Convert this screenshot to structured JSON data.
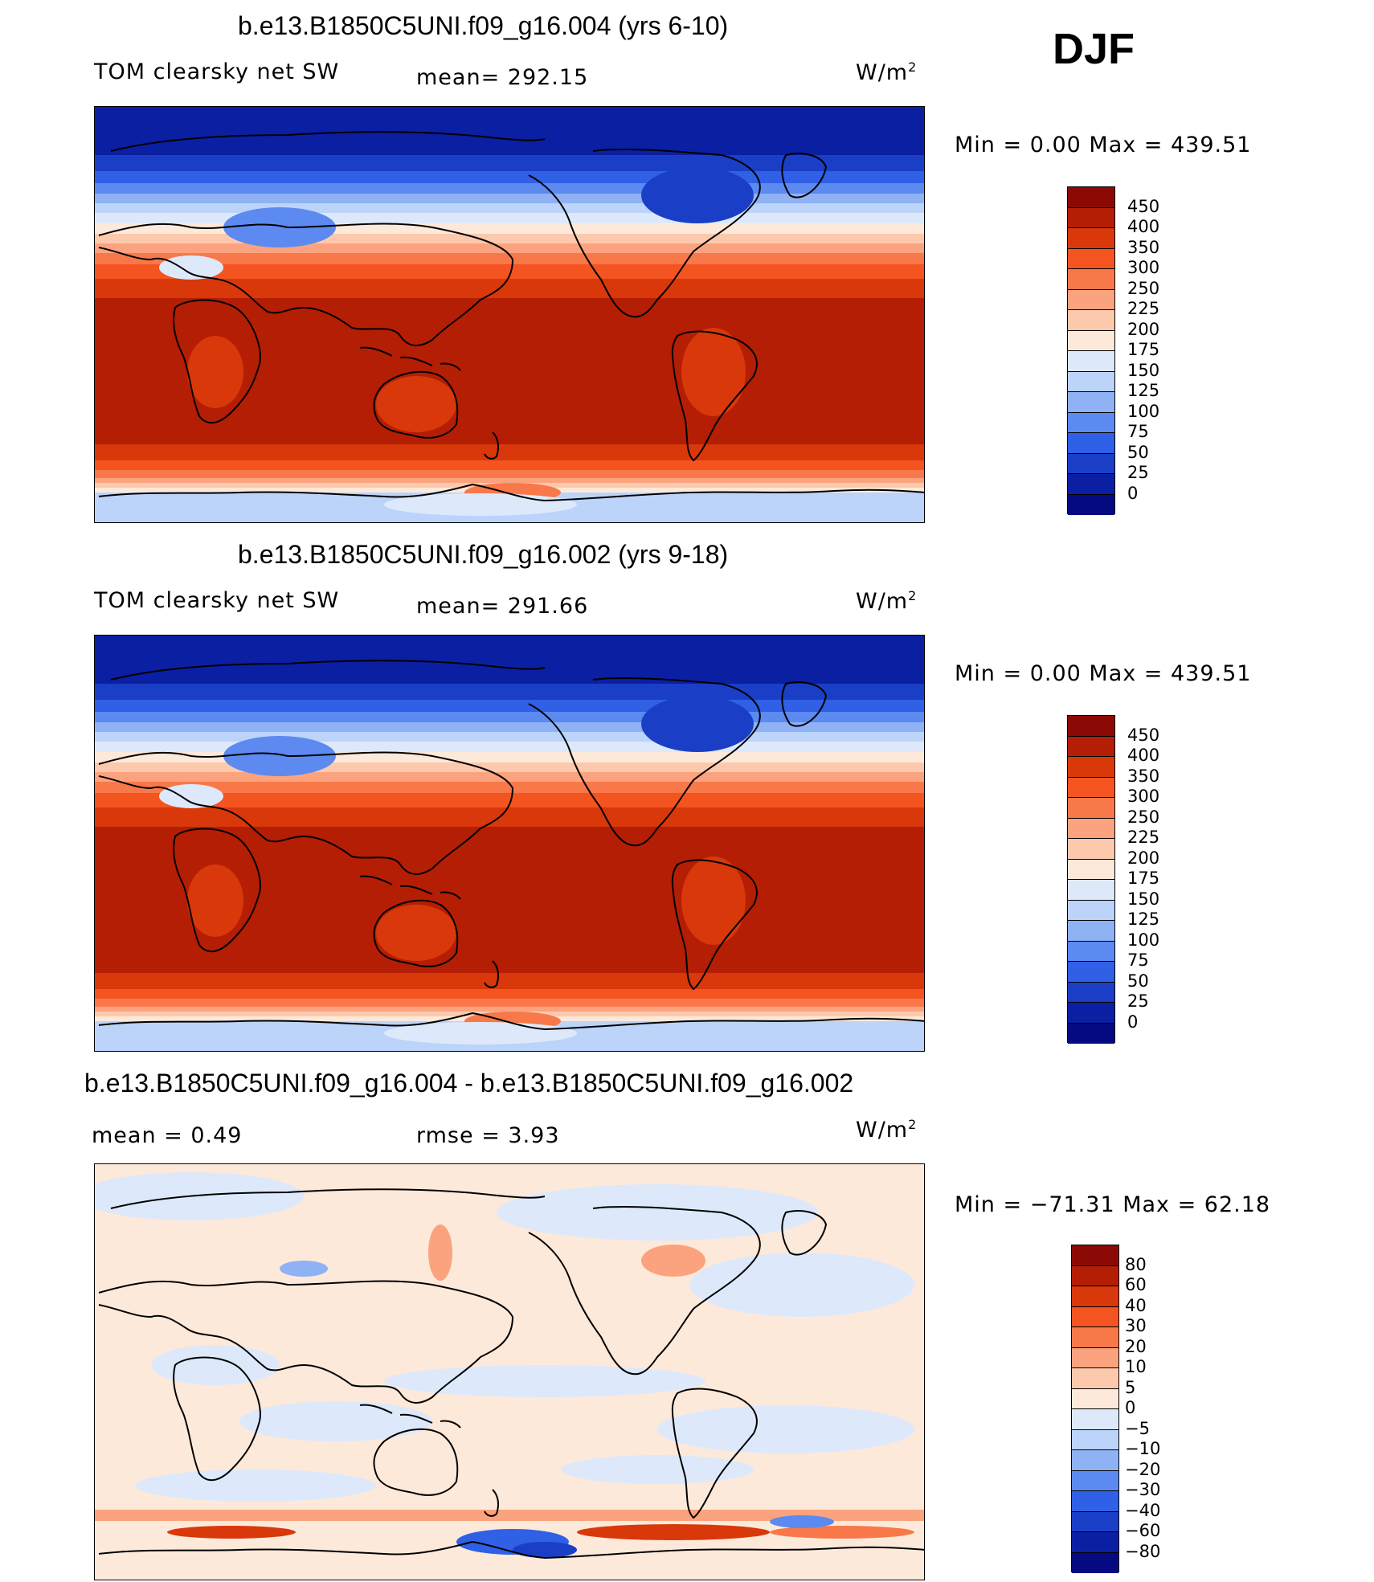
{
  "season": "DJF",
  "panels": [
    {
      "title": "b.e13.B1850C5UNI.f09_g16.004 (yrs 6-10)",
      "left_label": "TOM clearsky net SW",
      "mid_label": "mean= 292.15",
      "units_base": "W/m",
      "units_exp": "2",
      "minmax": "Min =    0.00 Max = 439.51",
      "colorbar_labels": [
        "450",
        "400",
        "350",
        "300",
        "250",
        "225",
        "200",
        "175",
        "150",
        "125",
        "100",
        "75",
        "50",
        "25",
        "0"
      ],
      "colorbar_colors": [
        "#8c0a06",
        "#b41e04",
        "#d8380a",
        "#f35420",
        "#f8784a",
        "#fba37e",
        "#fdc9ad",
        "#fde9da",
        "#dde9fb",
        "#bcd3fa",
        "#8fb2f5",
        "#5c8af0",
        "#2f60e5",
        "#1a3fc6",
        "#0b1fa3",
        "#050a80"
      ],
      "map_kind": "abs"
    },
    {
      "title": "b.e13.B1850C5UNI.f09_g16.002 (yrs 9-18)",
      "left_label": "TOM clearsky net SW",
      "mid_label": "mean= 291.66",
      "units_base": "W/m",
      "units_exp": "2",
      "minmax": "Min =    0.00 Max = 439.51",
      "colorbar_labels": [
        "450",
        "400",
        "350",
        "300",
        "250",
        "225",
        "200",
        "175",
        "150",
        "125",
        "100",
        "75",
        "50",
        "25",
        "0"
      ],
      "colorbar_colors": [
        "#8c0a06",
        "#b41e04",
        "#d8380a",
        "#f35420",
        "#f8784a",
        "#fba37e",
        "#fdc9ad",
        "#fde9da",
        "#dde9fb",
        "#bcd3fa",
        "#8fb2f5",
        "#5c8af0",
        "#2f60e5",
        "#1a3fc6",
        "#0b1fa3",
        "#050a80"
      ],
      "map_kind": "abs"
    },
    {
      "title": "b.e13.B1850C5UNI.f09_g16.004 - b.e13.B1850C5UNI.f09_g16.002",
      "left_label": "mean =    0.49",
      "mid_label": "rmse =    3.93",
      "units_base": "W/m",
      "units_exp": "2",
      "minmax": "Min = −71.31 Max =   62.18",
      "colorbar_labels": [
        "80",
        "60",
        "40",
        "30",
        "20",
        "10",
        "5",
        "0",
        "−5",
        "−10",
        "−20",
        "−30",
        "−40",
        "−60",
        "−80"
      ],
      "colorbar_colors": [
        "#8c0a06",
        "#b41e04",
        "#d8380a",
        "#f35420",
        "#f8784a",
        "#fba37e",
        "#fdc9ad",
        "#fde9da",
        "#dde9fb",
        "#bcd3fa",
        "#8fb2f5",
        "#5c8af0",
        "#2f60e5",
        "#1a3fc6",
        "#0b1fa3",
        "#050a80"
      ],
      "map_kind": "diff"
    }
  ]
}
